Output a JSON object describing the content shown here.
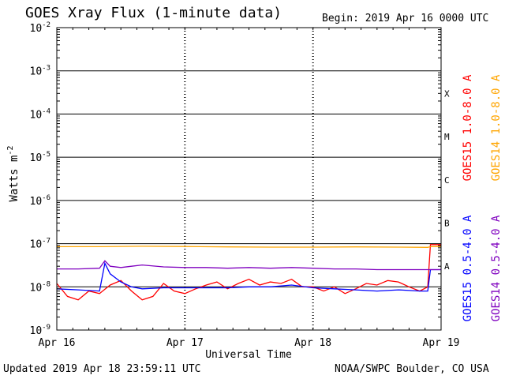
{
  "header": {
    "title": "GOES Xray Flux (1-minute data)",
    "begin_label": "Begin:",
    "begin_value": "2019 Apr 16 0000 UTC"
  },
  "footer": {
    "updated": "Updated 2019 Apr 18 23:59:11 UTC",
    "source": "NOAA/SWPC Boulder, CO USA"
  },
  "chart_data": {
    "type": "line",
    "title": "GOES Xray Flux (1-minute data)",
    "xlabel": "Universal Time",
    "ylabel_base": "Watts m",
    "ylabel_exp": "-2",
    "yscale": "log",
    "ylim": [
      1e-09,
      0.01
    ],
    "xlim_hours": [
      0,
      72
    ],
    "x_ticks": [
      {
        "label": "Apr 16",
        "hours": 0
      },
      {
        "label": "Apr 17",
        "hours": 24
      },
      {
        "label": "Apr 18",
        "hours": 48
      },
      {
        "label": "Apr 19",
        "hours": 72
      }
    ],
    "y_ticks": [
      {
        "base": "10",
        "exp": "-2",
        "value": 0.01
      },
      {
        "base": "10",
        "exp": "-3",
        "value": 0.001
      },
      {
        "base": "10",
        "exp": "-4",
        "value": 0.0001
      },
      {
        "base": "10",
        "exp": "-5",
        "value": 1e-05
      },
      {
        "base": "10",
        "exp": "-6",
        "value": 1e-06
      },
      {
        "base": "10",
        "exp": "-7",
        "value": 1e-07
      },
      {
        "base": "10",
        "exp": "-8",
        "value": 1e-08
      },
      {
        "base": "10",
        "exp": "-9",
        "value": 1e-09
      }
    ],
    "flare_classes": [
      {
        "label": "X",
        "value": 0.0003
      },
      {
        "label": "M",
        "value": 3e-05
      },
      {
        "label": "C",
        "value": 3e-06
      },
      {
        "label": "B",
        "value": 3e-07
      },
      {
        "label": "A",
        "value": 3e-08
      }
    ],
    "grid": "horizontal lines at each decade; dotted vertical lines at day boundaries",
    "series": [
      {
        "name": "GOES15 1.0-8.0 A",
        "color": "#ff0000",
        "points": [
          [
            0,
            1.2e-08
          ],
          [
            2,
            6e-09
          ],
          [
            4,
            5e-09
          ],
          [
            6,
            8e-09
          ],
          [
            8,
            7e-09
          ],
          [
            10,
            1.1e-08
          ],
          [
            12,
            1.4e-08
          ],
          [
            14,
            8e-09
          ],
          [
            16,
            5e-09
          ],
          [
            18,
            6e-09
          ],
          [
            20,
            1.2e-08
          ],
          [
            22,
            8e-09
          ],
          [
            24,
            7e-09
          ],
          [
            26,
            9e-09
          ],
          [
            28,
            1.1e-08
          ],
          [
            30,
            1.3e-08
          ],
          [
            32,
            9e-09
          ],
          [
            34,
            1.2e-08
          ],
          [
            36,
            1.5e-08
          ],
          [
            38,
            1.1e-08
          ],
          [
            40,
            1.3e-08
          ],
          [
            42,
            1.2e-08
          ],
          [
            44,
            1.5e-08
          ],
          [
            46,
            1e-08
          ],
          [
            48,
            1e-08
          ],
          [
            50,
            8e-09
          ],
          [
            52,
            1e-08
          ],
          [
            54,
            7e-09
          ],
          [
            56,
            9e-09
          ],
          [
            58,
            1.2e-08
          ],
          [
            60,
            1.1e-08
          ],
          [
            62,
            1.4e-08
          ],
          [
            64,
            1.3e-08
          ],
          [
            66,
            1e-08
          ],
          [
            68,
            8e-09
          ],
          [
            69.5,
            1e-08
          ],
          [
            70,
            9.5e-08
          ],
          [
            72,
            9.5e-08
          ]
        ]
      },
      {
        "name": "GOES14 1.0-8.0 A",
        "color": "#ffa500",
        "points": [
          [
            0,
            8.5e-08
          ],
          [
            8,
            8.5e-08
          ],
          [
            16,
            8.7e-08
          ],
          [
            24,
            8.6e-08
          ],
          [
            32,
            8.4e-08
          ],
          [
            40,
            8.3e-08
          ],
          [
            48,
            8.3e-08
          ],
          [
            56,
            8.4e-08
          ],
          [
            64,
            8.3e-08
          ],
          [
            69.5,
            8.2e-08
          ],
          [
            70,
            8.5e-08
          ],
          [
            72,
            8.6e-08
          ]
        ]
      },
      {
        "name": "GOES15 0.5-4.0 A",
        "color": "#0000ff",
        "points": [
          [
            0,
            9e-09
          ],
          [
            4,
            8.5e-09
          ],
          [
            8,
            8e-09
          ],
          [
            9,
            3.5e-08
          ],
          [
            10,
            2e-08
          ],
          [
            12,
            1.3e-08
          ],
          [
            14,
            1e-08
          ],
          [
            16,
            9e-09
          ],
          [
            20,
            9.5e-09
          ],
          [
            24,
            9.5e-09
          ],
          [
            28,
            9.5e-09
          ],
          [
            32,
            9.5e-09
          ],
          [
            36,
            1e-08
          ],
          [
            40,
            1e-08
          ],
          [
            44,
            1.1e-08
          ],
          [
            48,
            9.5e-09
          ],
          [
            52,
            9e-09
          ],
          [
            56,
            8.5e-09
          ],
          [
            60,
            8e-09
          ],
          [
            64,
            8.5e-09
          ],
          [
            68,
            8e-09
          ],
          [
            69.5,
            8e-09
          ],
          [
            70,
            2.5e-08
          ],
          [
            72,
            2.5e-08
          ]
        ]
      },
      {
        "name": "GOES14 0.5-4.0 A",
        "color": "#7f00bf",
        "points": [
          [
            0,
            2.6e-08
          ],
          [
            4,
            2.6e-08
          ],
          [
            8,
            2.7e-08
          ],
          [
            9,
            4e-08
          ],
          [
            10,
            3e-08
          ],
          [
            12,
            2.8e-08
          ],
          [
            14,
            3e-08
          ],
          [
            16,
            3.2e-08
          ],
          [
            20,
            2.9e-08
          ],
          [
            24,
            2.8e-08
          ],
          [
            28,
            2.8e-08
          ],
          [
            32,
            2.7e-08
          ],
          [
            36,
            2.8e-08
          ],
          [
            40,
            2.7e-08
          ],
          [
            44,
            2.8e-08
          ],
          [
            48,
            2.7e-08
          ],
          [
            52,
            2.6e-08
          ],
          [
            56,
            2.6e-08
          ],
          [
            60,
            2.5e-08
          ],
          [
            64,
            2.5e-08
          ],
          [
            68,
            2.5e-08
          ],
          [
            72,
            2.5e-08
          ]
        ]
      }
    ]
  }
}
